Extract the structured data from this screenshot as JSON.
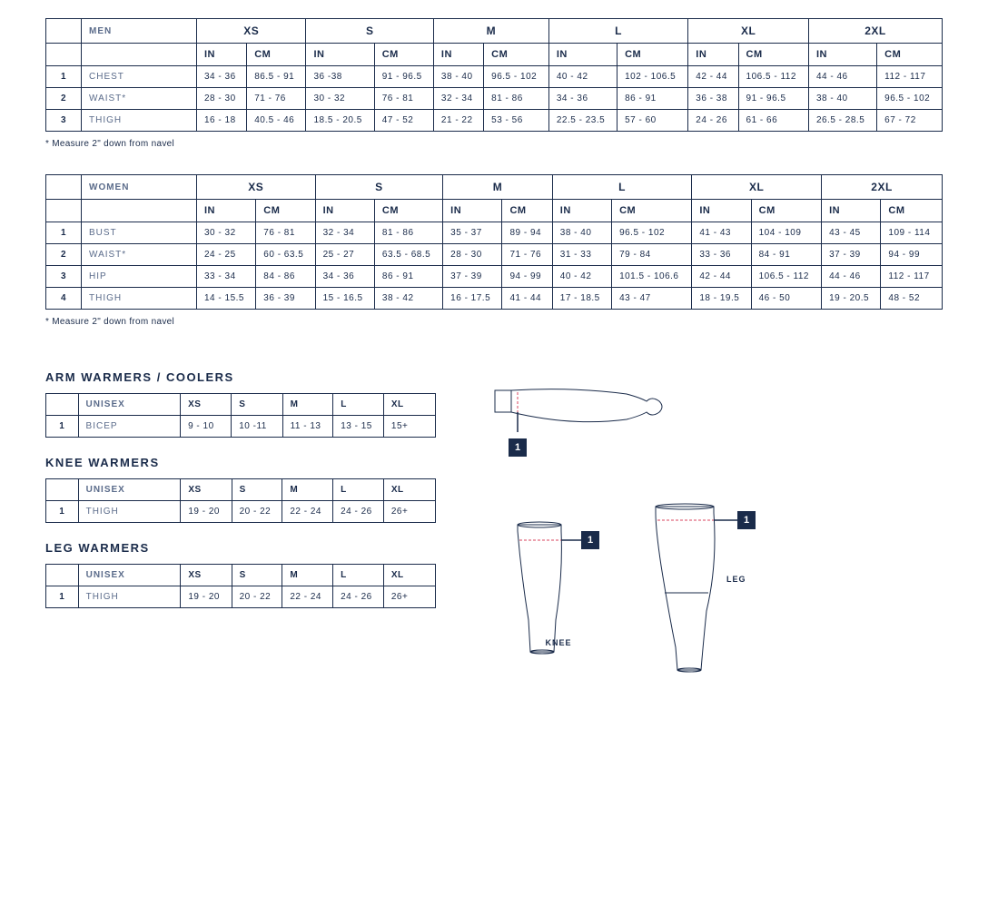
{
  "colors": {
    "border": "#1a2b4a",
    "text": "#1a2b4a",
    "muted": "#5a6b8a",
    "badge_bg": "#1a2b4a",
    "badge_fg": "#ffffff",
    "dashed": "#d9455f",
    "bg": "#ffffff"
  },
  "sizes_main": [
    "XS",
    "S",
    "M",
    "L",
    "XL",
    "2XL"
  ],
  "units": [
    "IN",
    "CM"
  ],
  "men": {
    "label": "MEN",
    "footnote": "* Measure 2\" down from navel",
    "rows": [
      {
        "n": "1",
        "name": "CHEST",
        "vals": [
          "34 - 36",
          "86.5 - 91",
          "36 -38",
          "91 - 96.5",
          "38 - 40",
          "96.5 - 102",
          "40 - 42",
          "102 - 106.5",
          "42 - 44",
          "106.5 - 112",
          "44 - 46",
          "112 - 117"
        ]
      },
      {
        "n": "2",
        "name": "WAIST*",
        "vals": [
          "28 - 30",
          "71 - 76",
          "30 - 32",
          "76 - 81",
          "32 - 34",
          "81 - 86",
          "34 - 36",
          "86 - 91",
          "36 - 38",
          "91 - 96.5",
          "38 - 40",
          "96.5 - 102"
        ]
      },
      {
        "n": "3",
        "name": "THIGH",
        "vals": [
          "16 - 18",
          "40.5 - 46",
          "18.5 - 20.5",
          "47 - 52",
          "21 - 22",
          "53 - 56",
          "22.5 - 23.5",
          "57 - 60",
          "24 - 26",
          "61 - 66",
          "26.5 - 28.5",
          "67 - 72"
        ]
      }
    ]
  },
  "women": {
    "label": "WOMEN",
    "footnote": "* Measure 2\" down from navel",
    "rows": [
      {
        "n": "1",
        "name": "BUST",
        "vals": [
          "30 - 32",
          "76 - 81",
          "32 - 34",
          "81 - 86",
          "35 - 37",
          "89 - 94",
          "38 - 40",
          "96.5 - 102",
          "41 - 43",
          "104 - 109",
          "43 - 45",
          "109 - 114"
        ]
      },
      {
        "n": "2",
        "name": "WAIST*",
        "vals": [
          "24 - 25",
          "60 - 63.5",
          "25 - 27",
          "63.5 - 68.5",
          "28 - 30",
          "71 - 76",
          "31 - 33",
          "79 - 84",
          "33 - 36",
          "84 - 91",
          "37 - 39",
          "94 - 99"
        ]
      },
      {
        "n": "3",
        "name": "HIP",
        "vals": [
          "33 - 34",
          "84 - 86",
          "34 - 36",
          "86 - 91",
          "37 - 39",
          "94 - 99",
          "40 - 42",
          "101.5 - 106.6",
          "42 - 44",
          "106.5 - 112",
          "44 - 46",
          "112 - 117"
        ]
      },
      {
        "n": "4",
        "name": "THIGH",
        "vals": [
          "14 - 15.5",
          "36 - 39",
          "15 - 16.5",
          "38 - 42",
          "16 - 17.5",
          "41 - 44",
          "17 - 18.5",
          "43 - 47",
          "18 - 19.5",
          "46 - 50",
          "19 - 20.5",
          "48 - 52"
        ]
      }
    ]
  },
  "sizes_unisex": [
    "XS",
    "S",
    "M",
    "L",
    "XL"
  ],
  "unisex_label": "UNISEX",
  "arm": {
    "title": "ARM WARMERS / COOLERS",
    "row": {
      "n": "1",
      "name": "BICEP",
      "vals": [
        "9 - 10",
        "10 -11",
        "11 - 13",
        "13 - 15",
        "15+"
      ]
    },
    "badge": "1"
  },
  "knee": {
    "title": "KNEE WARMERS",
    "row": {
      "n": "1",
      "name": "THIGH",
      "vals": [
        "19 - 20",
        "20 - 22",
        "22 - 24",
        "24 - 26",
        "26+"
      ]
    },
    "label": "KNEE",
    "badge": "1"
  },
  "leg": {
    "title": "LEG WARMERS",
    "row": {
      "n": "1",
      "name": "THIGH",
      "vals": [
        "19 - 20",
        "20 - 22",
        "22 - 24",
        "24 - 26",
        "26+"
      ]
    },
    "label": "LEG",
    "badge": "1"
  }
}
